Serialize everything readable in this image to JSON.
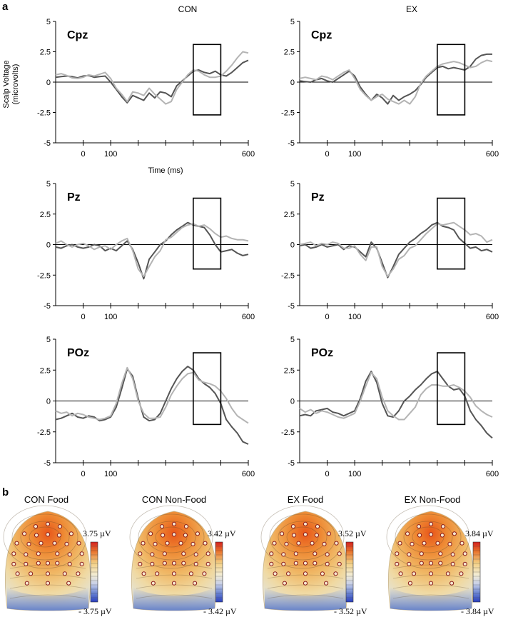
{
  "figure": {
    "section_a_label": "a",
    "section_b_label": "b",
    "column_titles": [
      "CON",
      "EX"
    ],
    "y_axis_title_line1": "Scalp Voltage",
    "y_axis_title_line2": "(microvolts)",
    "x_axis_title": "Time (ms)"
  },
  "colors": {
    "series_dark": "#555555",
    "series_light": "#b4b4b4",
    "window_box": "#000000"
  },
  "chart_data": [
    {
      "type": "line",
      "group": "CON",
      "electrode": "Cpz",
      "ylim": [
        -5,
        5
      ],
      "xlim": [
        -100,
        600
      ],
      "yticks": [
        "5",
        "2.5",
        "0",
        "-2.5",
        "-5"
      ],
      "xticks": [
        "0",
        "100",
        "600"
      ],
      "window_ms": [
        400,
        500
      ],
      "window_uv": [
        -2.7,
        3.1
      ],
      "x": [
        -100,
        -80,
        -60,
        -40,
        -20,
        0,
        20,
        40,
        60,
        80,
        100,
        120,
        140,
        160,
        180,
        200,
        220,
        240,
        260,
        280,
        300,
        320,
        340,
        360,
        380,
        400,
        420,
        440,
        460,
        480,
        500,
        520,
        540,
        560,
        580,
        600
      ],
      "series": [
        {
          "name": "dark",
          "values": [
            0.4,
            0.45,
            0.5,
            0.45,
            0.35,
            0.5,
            0.55,
            0.4,
            0.45,
            0.5,
            0.0,
            -0.6,
            -1.2,
            -1.7,
            -1.1,
            -1.3,
            -1.5,
            -0.9,
            -1.3,
            -0.8,
            -0.9,
            -1.2,
            -0.3,
            0.1,
            0.5,
            0.9,
            1.0,
            0.8,
            0.7,
            0.9,
            0.6,
            0.5,
            0.8,
            1.2,
            1.6,
            1.8
          ]
        },
        {
          "name": "light",
          "values": [
            0.6,
            0.7,
            0.55,
            0.35,
            0.3,
            0.4,
            0.6,
            0.5,
            0.65,
            0.8,
            0.3,
            -0.5,
            -1.0,
            -1.6,
            -0.8,
            -0.9,
            -1.1,
            -0.5,
            -1.0,
            -1.4,
            -1.8,
            -1.6,
            -0.6,
            0.0,
            0.6,
            1.0,
            0.9,
            0.6,
            0.4,
            0.4,
            0.5,
            0.9,
            1.4,
            2.0,
            2.5,
            2.4
          ]
        }
      ]
    },
    {
      "type": "line",
      "group": "EX",
      "electrode": "Cpz",
      "ylim": [
        -5,
        5
      ],
      "xlim": [
        -100,
        600
      ],
      "yticks": [
        "5",
        "2.5",
        "0",
        "-2.5",
        "-5"
      ],
      "xticks": [
        "0",
        "100",
        "600"
      ],
      "window_ms": [
        400,
        500
      ],
      "window_uv": [
        -2.7,
        3.1
      ],
      "x": [
        -100,
        -80,
        -60,
        -40,
        -20,
        0,
        20,
        40,
        60,
        80,
        100,
        120,
        140,
        160,
        180,
        200,
        220,
        240,
        260,
        280,
        300,
        320,
        340,
        360,
        380,
        400,
        420,
        440,
        460,
        480,
        500,
        520,
        540,
        560,
        580,
        600
      ],
      "series": [
        {
          "name": "dark",
          "values": [
            0.1,
            0.05,
            0.0,
            0.2,
            0.3,
            0.1,
            0.0,
            0.3,
            0.6,
            0.9,
            0.5,
            -0.4,
            -1.0,
            -1.5,
            -1.0,
            -1.3,
            -1.8,
            -1.1,
            -1.5,
            -1.2,
            -1.0,
            -0.7,
            -0.2,
            0.4,
            0.8,
            1.2,
            1.3,
            1.1,
            1.2,
            1.1,
            1.0,
            1.3,
            1.9,
            2.2,
            2.3,
            2.3
          ]
        },
        {
          "name": "light",
          "values": [
            0.3,
            0.4,
            0.3,
            0.2,
            0.5,
            0.4,
            0.2,
            0.5,
            0.8,
            1.0,
            0.3,
            -0.6,
            -1.1,
            -1.5,
            -1.2,
            -1.0,
            -1.4,
            -1.6,
            -1.8,
            -1.5,
            -1.8,
            -1.2,
            -0.1,
            0.5,
            0.9,
            1.3,
            1.5,
            1.6,
            1.7,
            1.6,
            1.4,
            1.2,
            1.3,
            1.6,
            1.8,
            1.7
          ]
        }
      ]
    },
    {
      "type": "line",
      "group": "CON",
      "electrode": "Pz",
      "ylim": [
        -5,
        5
      ],
      "xlim": [
        -100,
        600
      ],
      "yticks": [
        "5",
        "2.5",
        "0",
        "-2.5",
        "-5"
      ],
      "xticks": [
        "0",
        "100",
        "600"
      ],
      "window_ms": [
        400,
        500
      ],
      "window_uv": [
        -2.0,
        3.8
      ],
      "x": [
        -100,
        -80,
        -60,
        -40,
        -20,
        0,
        20,
        40,
        60,
        80,
        100,
        120,
        140,
        160,
        180,
        200,
        220,
        240,
        260,
        280,
        300,
        320,
        340,
        360,
        380,
        400,
        420,
        440,
        460,
        480,
        500,
        520,
        540,
        560,
        580,
        600
      ],
      "series": [
        {
          "name": "dark",
          "values": [
            -0.2,
            -0.3,
            -0.1,
            0.0,
            -0.2,
            -0.3,
            -0.2,
            0.0,
            -0.1,
            -0.5,
            -0.3,
            -0.5,
            -0.1,
            0.3,
            -0.4,
            -1.5,
            -2.8,
            -1.2,
            -0.6,
            0.0,
            0.3,
            0.8,
            1.2,
            1.5,
            1.8,
            1.6,
            1.5,
            1.4,
            0.8,
            0.0,
            -0.6,
            -0.5,
            -0.4,
            -0.7,
            -0.9,
            -0.8
          ]
        },
        {
          "name": "light",
          "values": [
            0.1,
            0.3,
            0.0,
            -0.2,
            0.0,
            0.1,
            -0.1,
            -0.4,
            -0.2,
            -0.1,
            -0.4,
            0.0,
            0.3,
            0.5,
            -0.5,
            -2.0,
            -2.6,
            -1.8,
            -1.0,
            -0.5,
            0.4,
            0.6,
            1.0,
            1.4,
            1.6,
            1.7,
            1.5,
            1.6,
            1.3,
            0.9,
            0.6,
            0.7,
            0.5,
            0.4,
            0.4,
            0.3
          ]
        }
      ]
    },
    {
      "type": "line",
      "group": "EX",
      "electrode": "Pz",
      "ylim": [
        -5,
        5
      ],
      "xlim": [
        -100,
        600
      ],
      "yticks": [
        "5",
        "2.5",
        "0",
        "-2.5",
        "-5"
      ],
      "xticks": [
        "0",
        "100",
        "600"
      ],
      "window_ms": [
        400,
        500
      ],
      "window_uv": [
        -2.0,
        3.8
      ],
      "x": [
        -100,
        -80,
        -60,
        -40,
        -20,
        0,
        20,
        40,
        60,
        80,
        100,
        120,
        140,
        160,
        180,
        200,
        220,
        240,
        260,
        280,
        300,
        320,
        340,
        360,
        380,
        400,
        420,
        440,
        460,
        480,
        500,
        520,
        540,
        560,
        580,
        600
      ],
      "series": [
        {
          "name": "dark",
          "values": [
            -0.1,
            0.0,
            -0.3,
            -0.2,
            0.0,
            -0.2,
            -0.1,
            0.0,
            -0.4,
            -0.1,
            -0.2,
            -0.6,
            -1.0,
            0.2,
            -0.3,
            -1.5,
            -2.7,
            -1.8,
            -0.8,
            -0.3,
            0.2,
            0.5,
            0.9,
            1.2,
            1.6,
            1.8,
            1.5,
            1.4,
            1.2,
            0.5,
            0.1,
            -0.3,
            -0.2,
            -0.5,
            -0.4,
            -0.6
          ]
        },
        {
          "name": "light",
          "values": [
            0.0,
            0.1,
            0.2,
            -0.1,
            0.1,
            0.0,
            0.2,
            0.1,
            -0.3,
            -0.3,
            -0.1,
            -0.8,
            -1.3,
            -0.2,
            -0.2,
            -1.8,
            -2.6,
            -2.0,
            -1.2,
            -0.9,
            -0.3,
            -0.1,
            0.4,
            0.9,
            1.3,
            1.7,
            1.6,
            1.7,
            1.8,
            1.5,
            1.2,
            0.8,
            0.9,
            0.7,
            0.2,
            0.4
          ]
        }
      ]
    },
    {
      "type": "line",
      "group": "CON",
      "electrode": "POz",
      "ylim": [
        -5,
        5
      ],
      "xlim": [
        -100,
        600
      ],
      "yticks": [
        "5",
        "2.5",
        "0",
        "-2.5",
        "-5"
      ],
      "xticks": [
        "0",
        "100",
        "600"
      ],
      "window_ms": [
        400,
        500
      ],
      "window_uv": [
        -1.9,
        3.9
      ],
      "x": [
        -100,
        -80,
        -60,
        -40,
        -20,
        0,
        20,
        40,
        60,
        80,
        100,
        120,
        140,
        160,
        180,
        200,
        220,
        240,
        260,
        280,
        300,
        320,
        340,
        360,
        380,
        400,
        420,
        440,
        460,
        480,
        500,
        520,
        540,
        560,
        580,
        600
      ],
      "series": [
        {
          "name": "dark",
          "values": [
            -1.5,
            -1.4,
            -1.2,
            -1.0,
            -1.3,
            -1.4,
            -1.2,
            -1.3,
            -1.6,
            -1.5,
            -1.3,
            -0.5,
            1.0,
            2.6,
            2.0,
            0.2,
            -1.3,
            -1.6,
            -1.5,
            -1.0,
            0.0,
            1.0,
            1.8,
            2.4,
            2.8,
            2.5,
            1.8,
            1.4,
            1.1,
            0.6,
            -0.2,
            -1.5,
            -2.1,
            -2.6,
            -3.3,
            -3.5
          ]
        },
        {
          "name": "light",
          "values": [
            -0.8,
            -1.0,
            -0.9,
            -1.2,
            -1.0,
            -1.1,
            -1.3,
            -1.4,
            -1.5,
            -1.4,
            -1.2,
            -0.2,
            1.4,
            2.7,
            1.8,
            0.0,
            -1.0,
            -1.4,
            -1.4,
            -1.3,
            -0.5,
            0.5,
            1.2,
            1.8,
            2.2,
            2.3,
            1.7,
            1.5,
            1.4,
            1.2,
            0.8,
            0.2,
            -0.6,
            -1.2,
            -1.5,
            -1.8
          ]
        }
      ]
    },
    {
      "type": "line",
      "group": "EX",
      "electrode": "POz",
      "ylim": [
        -5,
        5
      ],
      "xlim": [
        -100,
        600
      ],
      "yticks": [
        "5",
        "2.5",
        "0",
        "-2.5",
        "-5"
      ],
      "xticks": [
        "0",
        "100",
        "600"
      ],
      "window_ms": [
        400,
        500
      ],
      "window_uv": [
        -1.9,
        3.9
      ],
      "x": [
        -100,
        -80,
        -60,
        -40,
        -20,
        0,
        20,
        40,
        60,
        80,
        100,
        120,
        140,
        160,
        180,
        200,
        220,
        240,
        260,
        280,
        300,
        320,
        340,
        360,
        380,
        400,
        420,
        440,
        460,
        480,
        500,
        520,
        540,
        560,
        580,
        600
      ],
      "series": [
        {
          "name": "dark",
          "values": [
            -1.2,
            -1.1,
            -1.2,
            -0.8,
            -0.7,
            -0.6,
            -0.9,
            -1.0,
            -1.2,
            -1.0,
            -0.8,
            0.2,
            1.6,
            2.4,
            1.5,
            -0.2,
            -1.2,
            -1.3,
            -0.8,
            0.0,
            0.4,
            0.9,
            1.3,
            1.8,
            2.2,
            2.4,
            1.8,
            1.2,
            0.9,
            1.0,
            0.4,
            -0.8,
            -1.5,
            -2.0,
            -2.6,
            -3.0
          ]
        },
        {
          "name": "light",
          "values": [
            -0.6,
            -0.9,
            -0.7,
            -1.0,
            -0.8,
            -0.9,
            -1.1,
            -1.3,
            -1.4,
            -1.2,
            -1.0,
            0.0,
            1.2,
            2.3,
            1.8,
            0.3,
            -0.8,
            -1.2,
            -1.5,
            -1.5,
            -1.0,
            -0.5,
            0.5,
            1.0,
            1.3,
            1.3,
            1.2,
            1.2,
            1.3,
            1.1,
            0.8,
            0.3,
            -0.4,
            -0.8,
            -1.1,
            -1.3
          ]
        }
      ]
    },
    {
      "type": "heatmap",
      "subtype": "scalp-topography",
      "title": "CON Food",
      "scale_max": "3.75 µV",
      "scale_min": "- 3.75 µV"
    },
    {
      "type": "heatmap",
      "subtype": "scalp-topography",
      "title": "CON Non-Food",
      "scale_max": "3.42 µV",
      "scale_min": "- 3.42 µV"
    },
    {
      "type": "heatmap",
      "subtype": "scalp-topography",
      "title": "EX Food",
      "scale_max": "3.52 µV",
      "scale_min": "- 3.52 µV"
    },
    {
      "type": "heatmap",
      "subtype": "scalp-topography",
      "title": "EX Non-Food",
      "scale_max": "3.84 µV",
      "scale_min": "- 3.84 µV"
    }
  ]
}
